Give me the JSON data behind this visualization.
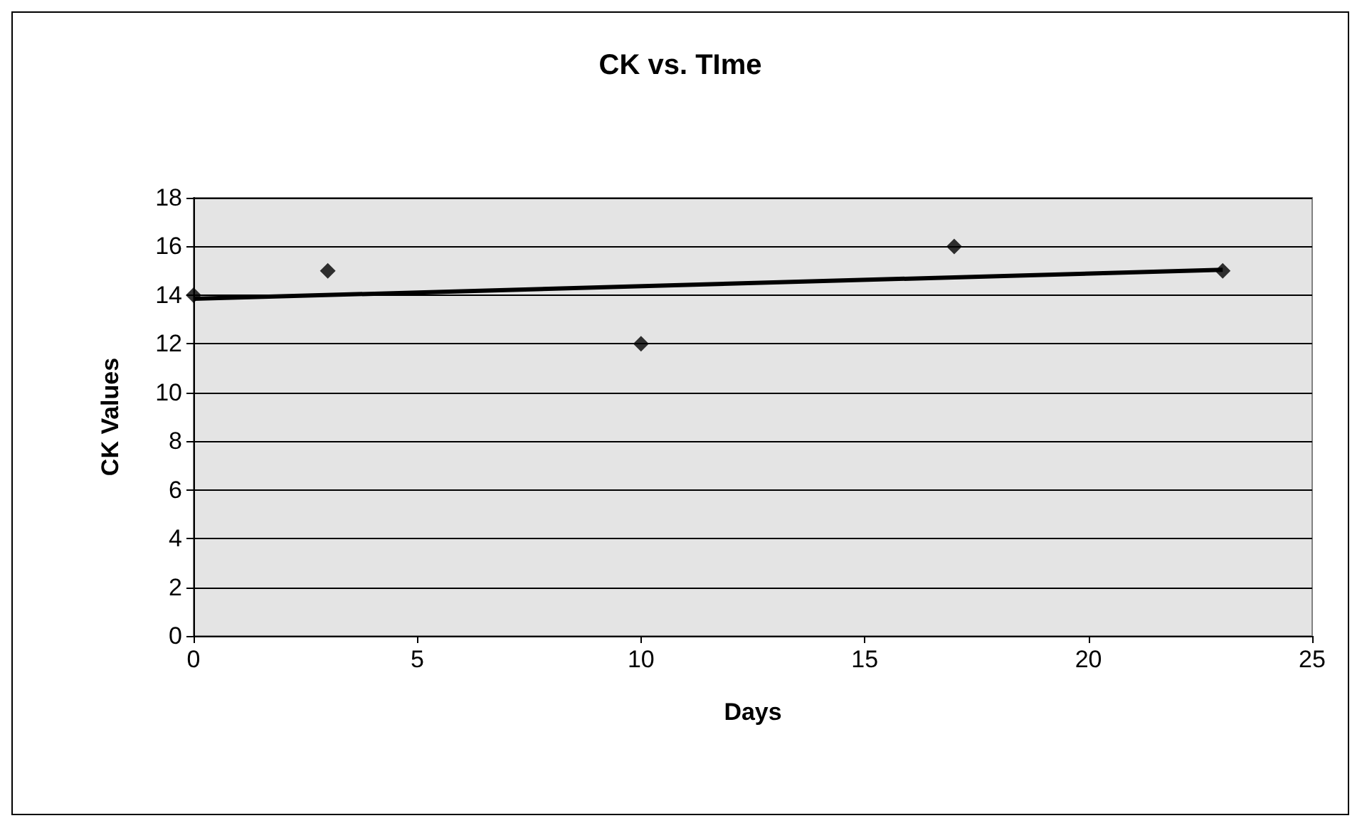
{
  "chart_data": {
    "type": "scatter",
    "title": "CK vs. TIme",
    "xlabel": "Days",
    "ylabel": "CK Values",
    "xlim": [
      0,
      25
    ],
    "xticks": [
      0,
      5,
      10,
      15,
      20,
      25
    ],
    "ylim": [
      0,
      18
    ],
    "yticks": [
      0,
      2,
      4,
      6,
      8,
      10,
      12,
      14,
      16,
      18
    ],
    "grid": "y",
    "marker": "diamond",
    "series": [
      {
        "color": "#000000",
        "x": [
          0,
          3,
          10,
          17,
          23
        ],
        "values": [
          14,
          15,
          12,
          16,
          15
        ]
      },
      {
        "type": "line",
        "color": "#000000",
        "marker": "none",
        "line_style": "solid",
        "x": [
          0,
          23
        ],
        "values": [
          13.85,
          15.04
        ]
      }
    ]
  }
}
